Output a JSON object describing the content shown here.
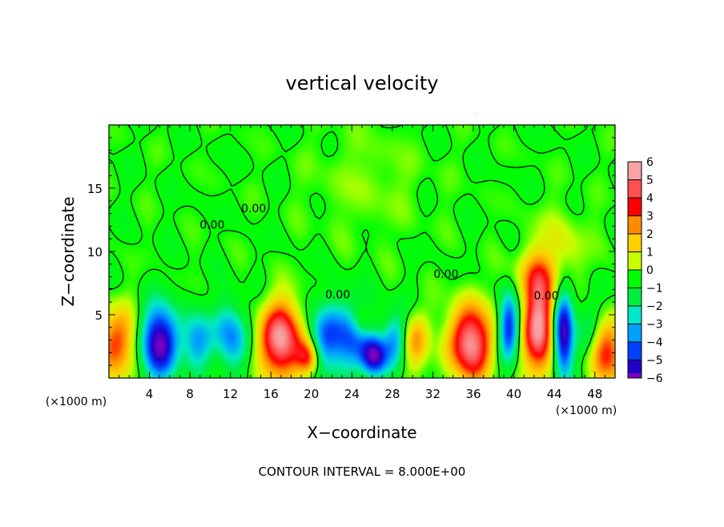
{
  "chart_data": {
    "type": "heatmap",
    "title": "vertical velocity",
    "xlabel": "X−coordinate",
    "ylabel": "Z−coordinate",
    "x_unit_left": "(×1000 m)",
    "x_unit_right": "(×1000 m)",
    "xlim": [
      0,
      50
    ],
    "ylim": [
      0,
      20
    ],
    "x_ticks": [
      4,
      8,
      12,
      16,
      20,
      24,
      28,
      32,
      36,
      40,
      44,
      48
    ],
    "y_ticks": [
      5,
      10,
      15
    ],
    "x_tick_labels": [
      "4",
      "8",
      "12",
      "16",
      "20",
      "24",
      "28",
      "32",
      "36",
      "40",
      "44",
      "48"
    ],
    "y_tick_labels": [
      "5",
      "10",
      "15"
    ],
    "contour_labels": [
      {
        "text": "0.00",
        "x": 14.3,
        "y": 13.1
      },
      {
        "text": "0.00",
        "x": 10.2,
        "y": 11.8
      },
      {
        "text": "0.00",
        "x": 33.3,
        "y": 7.9
      },
      {
        "text": "0.00",
        "x": 22.6,
        "y": 6.3
      },
      {
        "text": "0.00",
        "x": 43.2,
        "y": 6.2
      }
    ],
    "footer": "CONTOUR INTERVAL = 8.000E+00",
    "colorbar": {
      "levels": [
        "6",
        "5",
        "4",
        "3",
        "2",
        "1",
        "0",
        "−1",
        "−2",
        "−3",
        "−4",
        "−5",
        "−6"
      ],
      "colors": [
        "#f5a3a3",
        "#ff5050",
        "#ff0000",
        "#ff8c00",
        "#ffd000",
        "#c8ff00",
        "#00ff00",
        "#00ee40",
        "#00e8c8",
        "#00a0ff",
        "#0040ff",
        "#2000c8",
        "#8000c0"
      ]
    },
    "features": [
      {
        "x": 0.7,
        "z": 2.8,
        "value": 3.5,
        "sx": 1.6,
        "sz": 2.0
      },
      {
        "x": 5.0,
        "z": 2.8,
        "value": -6.0,
        "sx": 1.3,
        "sz": 2.0
      },
      {
        "x": 8.7,
        "z": 3.0,
        "value": -3.0,
        "sx": 1.0,
        "sz": 1.5
      },
      {
        "x": 12.0,
        "z": 3.3,
        "value": -3.5,
        "sx": 1.1,
        "sz": 1.8
      },
      {
        "x": 17.0,
        "z": 3.0,
        "value": 6.0,
        "sx": 1.5,
        "sz": 2.1
      },
      {
        "x": 19.7,
        "z": 1.6,
        "value": 4.0,
        "sx": 0.8,
        "sz": 1.0
      },
      {
        "x": 21.3,
        "z": 2.9,
        "value": -3.0,
        "sx": 1.2,
        "sz": 2.0
      },
      {
        "x": 23.9,
        "z": 3.4,
        "value": -3.5,
        "sx": 1.6,
        "sz": 1.8
      },
      {
        "x": 26.2,
        "z": 1.7,
        "value": -5.5,
        "sx": 0.9,
        "sz": 1.1
      },
      {
        "x": 28.2,
        "z": 3.1,
        "value": -2.5,
        "sx": 0.8,
        "sz": 1.6
      },
      {
        "x": 25.0,
        "z": 4.3,
        "value": 2.0,
        "sx": 0.8,
        "sz": 1.0
      },
      {
        "x": 30.3,
        "z": 2.8,
        "value": 2.5,
        "sx": 0.9,
        "sz": 1.6
      },
      {
        "x": 35.7,
        "z": 2.8,
        "value": 6.0,
        "sx": 1.5,
        "sz": 2.1
      },
      {
        "x": 39.5,
        "z": 4.1,
        "value": -4.5,
        "sx": 0.7,
        "sz": 1.9
      },
      {
        "x": 42.5,
        "z": 4.0,
        "value": 6.0,
        "sx": 1.1,
        "sz": 2.7
      },
      {
        "x": 44.9,
        "z": 3.4,
        "value": -6.0,
        "sx": 0.7,
        "sz": 2.3
      },
      {
        "x": 47.5,
        "z": 3.1,
        "value": -2.0,
        "sx": 1.0,
        "sz": 2.0
      },
      {
        "x": 49.0,
        "z": 2.0,
        "value": 4.5,
        "sx": 1.3,
        "sz": 1.8
      },
      {
        "x": 42.2,
        "z": 7.9,
        "value": 2.0,
        "sx": 1.6,
        "sz": 1.4
      },
      {
        "x": 44.5,
        "z": 10.5,
        "value": 1.2,
        "sx": 2.0,
        "sz": 2.0
      },
      {
        "x": 25.5,
        "z": 15.5,
        "value": 0.6,
        "sx": 4.0,
        "sz": 3.0
      }
    ]
  }
}
